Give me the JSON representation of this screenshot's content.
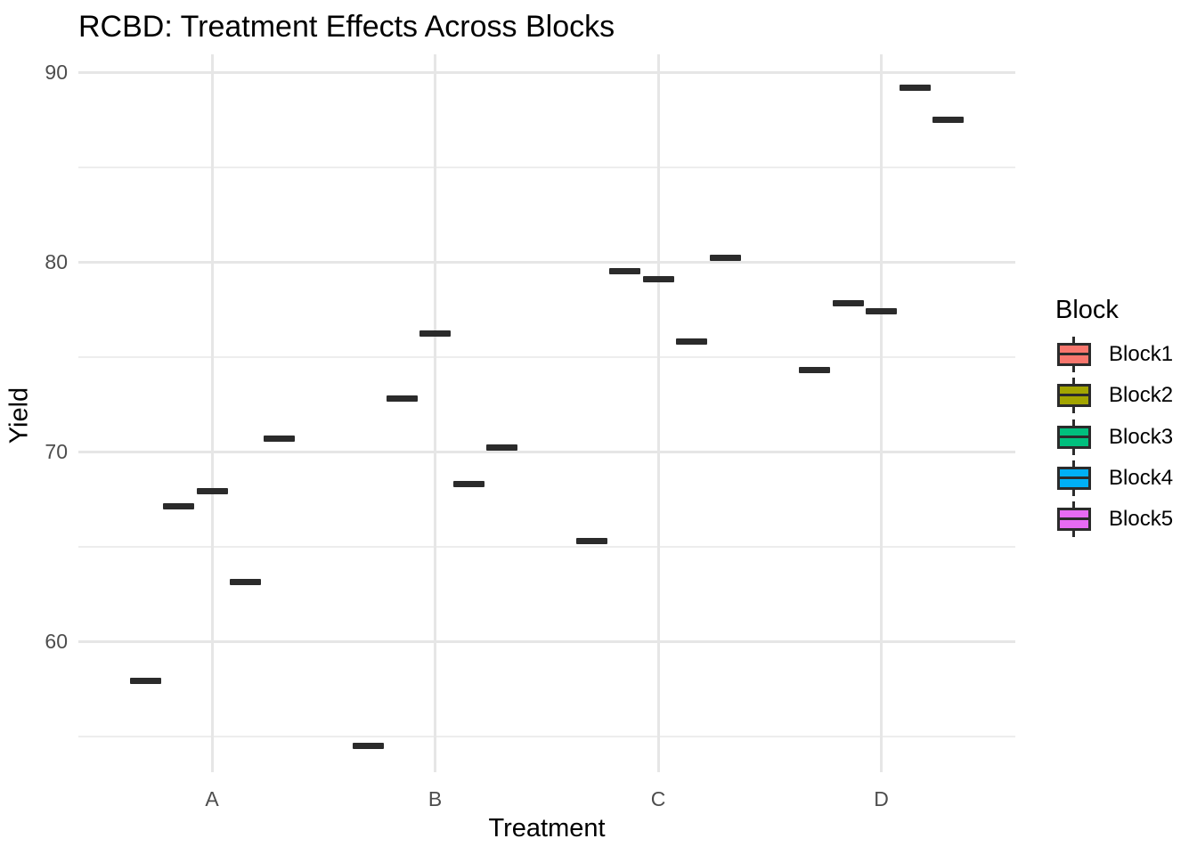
{
  "chart_data": {
    "type": "boxplot",
    "title": "RCBD: Treatment Effects Across Blocks",
    "xlabel": "Treatment",
    "ylabel": "Yield",
    "legend_title": "Block",
    "legend_position": "right",
    "grid": "major+minor",
    "categories": [
      "A",
      "B",
      "C",
      "D"
    ],
    "series": [
      {
        "name": "Block1",
        "color": "#F8766D",
        "values": [
          57.9,
          54.5,
          65.3,
          74.3
        ]
      },
      {
        "name": "Block2",
        "color": "#A3A500",
        "values": [
          67.1,
          72.8,
          79.5,
          77.8
        ]
      },
      {
        "name": "Block3",
        "color": "#00BF7D",
        "values": [
          67.9,
          76.2,
          79.1,
          77.4
        ]
      },
      {
        "name": "Block4",
        "color": "#00B0F6",
        "values": [
          63.1,
          68.3,
          75.8,
          89.2
        ]
      },
      {
        "name": "Block5",
        "color": "#E76BF3",
        "values": [
          70.7,
          70.2,
          80.2,
          87.5
        ]
      }
    ],
    "y_major_ticks": [
      60,
      70,
      80,
      90
    ],
    "y_minor_ticks": [
      55,
      65,
      75,
      85
    ],
    "ylim": [
      53.1,
      90.9
    ],
    "mark_color": "#2B2B2B",
    "tick_label_color": "#4D4D4D"
  }
}
